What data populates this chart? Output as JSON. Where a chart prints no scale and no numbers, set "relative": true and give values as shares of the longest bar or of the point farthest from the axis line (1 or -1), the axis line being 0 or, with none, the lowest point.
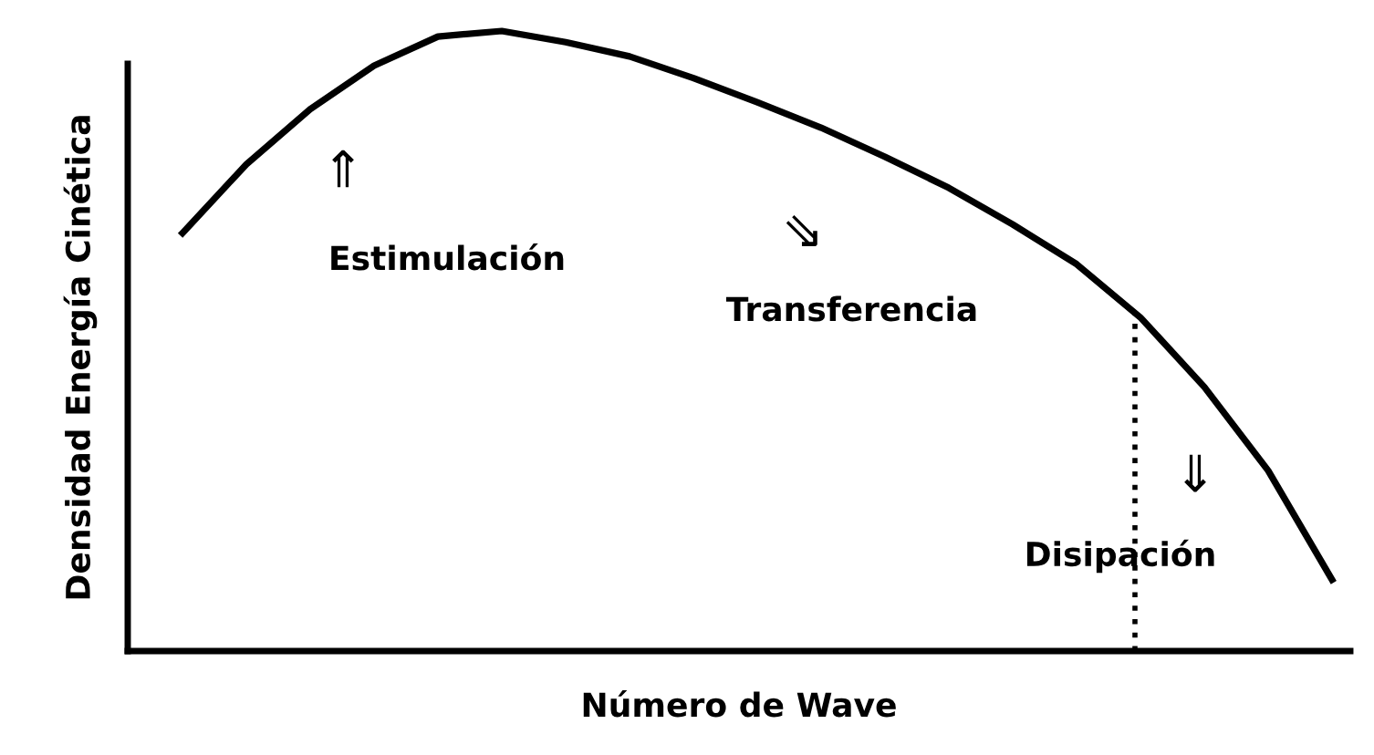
{
  "chart_data": {
    "type": "line",
    "relative": true,
    "xlabel": "Número de Wave",
    "ylabel": "Densidad Energía Cinética",
    "categories": [
      null,
      null,
      null,
      null,
      null,
      null,
      null,
      null,
      null,
      null,
      null,
      null,
      null,
      null,
      null,
      null,
      null,
      null,
      null
    ],
    "series": [
      {
        "color": "#000000",
        "values": [
          0.674,
          0.785,
          0.874,
          0.944,
          0.991,
          1.0,
          0.982,
          0.959,
          0.924,
          0.885,
          0.844,
          0.797,
          0.747,
          0.688,
          0.624,
          0.538,
          0.426,
          0.291,
          0.115
        ]
      }
    ],
    "annotations": [
      "⇑",
      "Estimulación",
      "⇘",
      "Transferencia",
      "⇓",
      "Disipación"
    ],
    "legend": false,
    "marker": "none",
    "line_style": "solid"
  }
}
